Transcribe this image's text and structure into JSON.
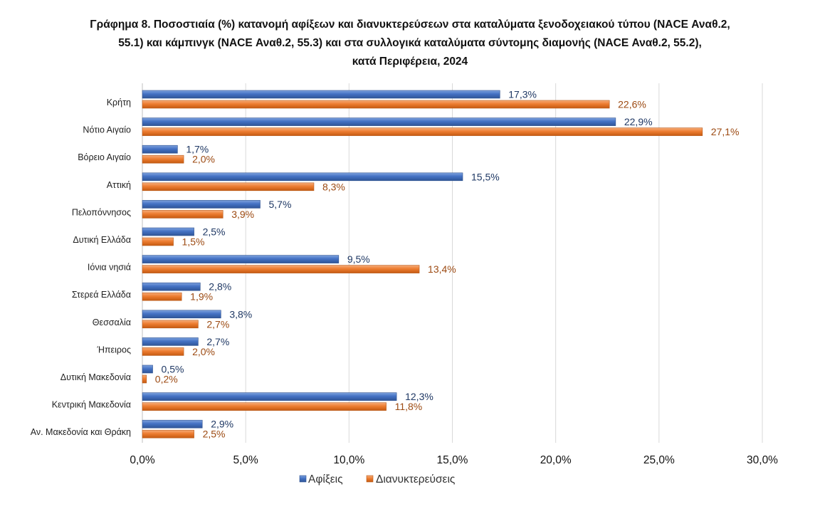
{
  "chart_data": {
    "type": "bar",
    "orientation": "horizontal",
    "title_lines": [
      "Γράφημα 8. Ποσοστιαία (%) κατανομή αφίξεων και διανυκτερεύσεων στα καταλύματα ξενοδοχειακού τύπου (NACE Αναθ.2,",
      "55.1) και κάμπινγκ (NACE Αναθ.2, 55.3) και στα συλλογικά καταλύματα σύντομης διαμονής (NACE Αναθ.2, 55.2),",
      "κατά Περιφέρεια, 2024"
    ],
    "categories": [
      "Κρήτη",
      "Νότιο Αιγαίο",
      "Βόρειο Αιγαίο",
      "Αττική",
      "Πελοπόννησος",
      "Δυτική Ελλάδα",
      "Ιόνια νησιά",
      "Στερεά Ελλάδα",
      "Θεσσαλία",
      "Ήπειρος",
      "Δυτική Μακεδονία",
      "Κεντρική Μακεδονία",
      "Αν. Μακεδονία και Θράκη"
    ],
    "series": [
      {
        "name": "Αφίξεις",
        "color": "#4472C4",
        "label_color": "#1F3864",
        "values": [
          17.3,
          22.9,
          1.7,
          15.5,
          5.7,
          2.5,
          9.5,
          2.8,
          3.8,
          2.7,
          0.5,
          12.3,
          2.9
        ],
        "labels": [
          "17,3%",
          "22,9%",
          "1,7%",
          "15,5%",
          "5,7%",
          "2,5%",
          "9,5%",
          "2,8%",
          "3,8%",
          "2,7%",
          "0,5%",
          "12,3%",
          "2,9%"
        ]
      },
      {
        "name": "Διανυκτερεύσεις",
        "color": "#ED7D31",
        "label_color": "#9C4A12",
        "values": [
          22.6,
          27.1,
          2.0,
          8.3,
          3.9,
          1.5,
          13.4,
          1.9,
          2.7,
          2.0,
          0.2,
          11.8,
          2.5
        ],
        "labels": [
          "22,6%",
          "27,1%",
          "2,0%",
          "8,3%",
          "3,9%",
          "1,5%",
          "13,4%",
          "1,9%",
          "2,7%",
          "2,0%",
          "0,2%",
          "11,8%",
          "2,5%"
        ]
      }
    ],
    "x_ticks": [
      0,
      5,
      10,
      15,
      20,
      25,
      30
    ],
    "x_tick_labels": [
      "0,0%",
      "5,0%",
      "10,0%",
      "15,0%",
      "20,0%",
      "25,0%",
      "30,0%"
    ],
    "xlim": [
      0,
      30
    ],
    "grid": "vertical",
    "legend_position": "bottom"
  }
}
